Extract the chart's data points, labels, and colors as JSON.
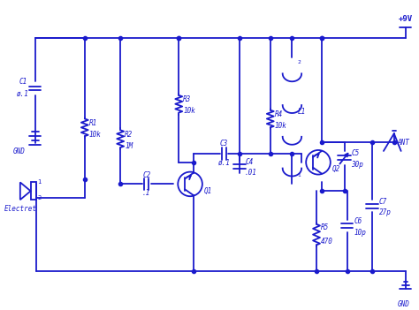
{
  "bg_color": "#ffffff",
  "circuit_color": "#1a1acc",
  "line_width": 1.3,
  "components": {
    "C1": {
      "label": "C1",
      "value": "ø.1"
    },
    "GND_left": {
      "label": "GND"
    },
    "R1": {
      "label": "R1",
      "value": "10k"
    },
    "R2": {
      "label": "R2",
      "value": "1M"
    },
    "C2": {
      "label": "C2",
      "value": ".1"
    },
    "Q1": {
      "label": "Q1"
    },
    "R3": {
      "label": "R3",
      "value": "10k"
    },
    "C3": {
      "label": "C3",
      "value": "ø.1"
    },
    "C4": {
      "label": "C4",
      "value": ".01"
    },
    "R4": {
      "label": "R4",
      "value": "10k"
    },
    "L1": {
      "label": "L1"
    },
    "Q2": {
      "label": "Q2"
    },
    "C5": {
      "label": "C5",
      "value": "30p"
    },
    "R5": {
      "label": "R5",
      "value": "470"
    },
    "C6": {
      "label": "C6",
      "value": "10p"
    },
    "C7": {
      "label": "C7",
      "value": "27p"
    },
    "ANT": {
      "label": "ANT"
    },
    "9V": {
      "label": "+9V"
    },
    "GND_right": {
      "label": "GND"
    },
    "Electret": {
      "label": "Electret"
    }
  }
}
